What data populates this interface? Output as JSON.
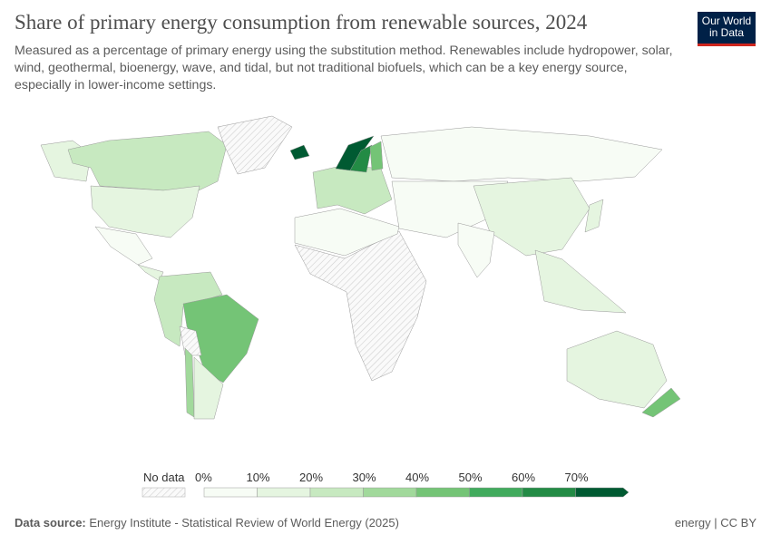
{
  "header": {
    "title": "Share of primary energy consumption from renewable sources, 2024",
    "subtitle": "Measured as a percentage of primary energy using the substitution method. Renewables include hydropower, solar, wind, geothermal, bioenergy, wave, and tidal, but not traditional biofuels, which can be a key energy source, especially in lower-income settings.",
    "logo": "Our World in Data"
  },
  "legend": {
    "no_data_label": "No data",
    "ticks": [
      "0%",
      "10%",
      "20%",
      "30%",
      "40%",
      "50%",
      "60%",
      "70%"
    ],
    "colors": [
      "#f7fcf5",
      "#e5f5e0",
      "#c7e9c0",
      "#a1d99b",
      "#74c476",
      "#41ab5d",
      "#238b45",
      "#005a32"
    ],
    "no_data_color": "#e0e0e0"
  },
  "map_data": {
    "unit": "%",
    "values": {
      "Canada": 28,
      "United States": 11,
      "Alaska": 11,
      "Mexico": 8,
      "Central America": 15,
      "Colombia/Venezuela/Peru": 25,
      "Brazil": 48,
      "Chile": 35,
      "Argentina": 12,
      "Europe": 22,
      "Norway": 72,
      "Sweden": 62,
      "Finland": 42,
      "Iceland": 80,
      "Russia": 6,
      "Middle East & Central Asia": 3,
      "China": 17,
      "India": 9,
      "Southeast Asia": 12,
      "Japan": 12,
      "Australia": 14,
      "New Zealand": 45,
      "North Africa": 5
    },
    "no_data": [
      "Greenland",
      "Sub-Saharan Africa",
      "Bolivia"
    ]
  },
  "footer": {
    "source_label": "Data source:",
    "source": "Energy Institute - Statistical Review of World Energy (2025)",
    "right": "energy | CC BY"
  }
}
